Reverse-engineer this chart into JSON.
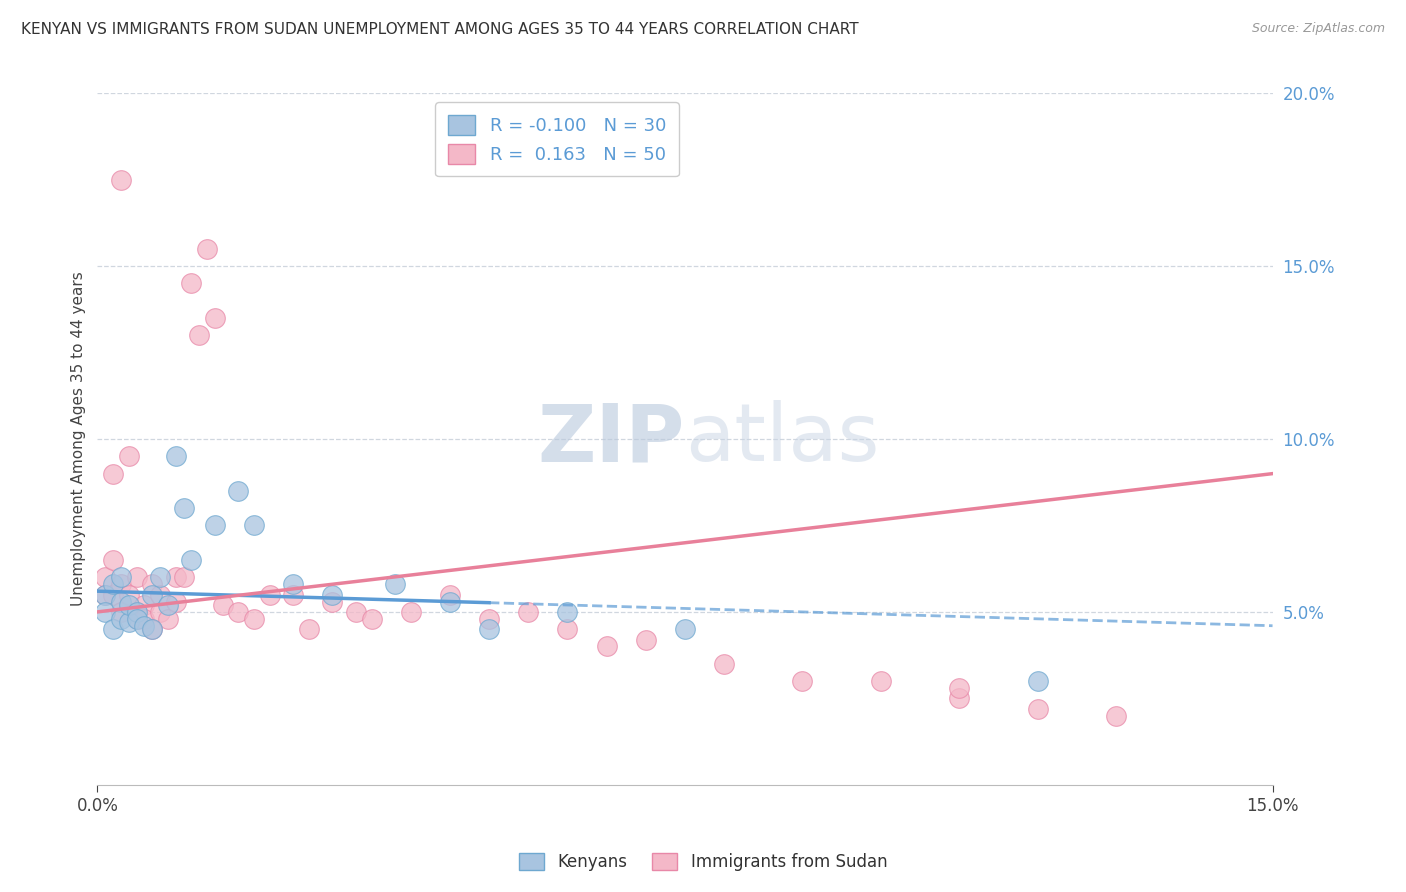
{
  "title": "KENYAN VS IMMIGRANTS FROM SUDAN UNEMPLOYMENT AMONG AGES 35 TO 44 YEARS CORRELATION CHART",
  "source": "Source: ZipAtlas.com",
  "ylabel": "Unemployment Among Ages 35 to 44 years",
  "legend_kenyans": "Kenyans",
  "legend_immigrants": "Immigrants from Sudan",
  "R_kenyans": -0.1,
  "N_kenyans": 30,
  "R_immigrants": 0.163,
  "N_immigrants": 50,
  "xmin": 0.0,
  "xmax": 0.15,
  "ymin": 0.0,
  "ymax": 0.2,
  "color_kenyans_fill": "#a8c4e0",
  "color_kenyans_edge": "#6ea8d0",
  "color_immigrants_fill": "#f4b8c8",
  "color_immigrants_edge": "#e888a8",
  "color_trend_kenyans": "#5b9bd5",
  "color_trend_immigrants": "#e8809a",
  "watermark_color": "#ccd8ec",
  "kenyans_x": [
    0.001,
    0.001,
    0.002,
    0.002,
    0.003,
    0.003,
    0.003,
    0.004,
    0.004,
    0.005,
    0.005,
    0.006,
    0.007,
    0.007,
    0.008,
    0.009,
    0.01,
    0.011,
    0.012,
    0.015,
    0.018,
    0.02,
    0.025,
    0.03,
    0.038,
    0.045,
    0.05,
    0.06,
    0.075,
    0.12
  ],
  "kenyans_y": [
    0.055,
    0.05,
    0.058,
    0.045,
    0.053,
    0.048,
    0.06,
    0.047,
    0.052,
    0.05,
    0.048,
    0.046,
    0.055,
    0.045,
    0.06,
    0.052,
    0.095,
    0.08,
    0.065,
    0.075,
    0.085,
    0.075,
    0.058,
    0.055,
    0.058,
    0.053,
    0.045,
    0.05,
    0.045,
    0.03
  ],
  "immigrants_x": [
    0.001,
    0.001,
    0.002,
    0.002,
    0.002,
    0.003,
    0.003,
    0.003,
    0.004,
    0.004,
    0.005,
    0.005,
    0.005,
    0.006,
    0.006,
    0.007,
    0.007,
    0.008,
    0.008,
    0.009,
    0.01,
    0.01,
    0.011,
    0.012,
    0.013,
    0.014,
    0.015,
    0.016,
    0.018,
    0.02,
    0.022,
    0.025,
    0.027,
    0.03,
    0.033,
    0.035,
    0.04,
    0.045,
    0.05,
    0.055,
    0.06,
    0.065,
    0.07,
    0.08,
    0.09,
    0.1,
    0.11,
    0.12,
    0.13,
    0.11
  ],
  "immigrants_y": [
    0.06,
    0.055,
    0.065,
    0.055,
    0.09,
    0.058,
    0.05,
    0.175,
    0.055,
    0.095,
    0.06,
    0.048,
    0.05,
    0.052,
    0.048,
    0.058,
    0.045,
    0.05,
    0.055,
    0.048,
    0.06,
    0.053,
    0.06,
    0.145,
    0.13,
    0.155,
    0.135,
    0.052,
    0.05,
    0.048,
    0.055,
    0.055,
    0.045,
    0.053,
    0.05,
    0.048,
    0.05,
    0.055,
    0.048,
    0.05,
    0.045,
    0.04,
    0.042,
    0.035,
    0.03,
    0.03,
    0.025,
    0.022,
    0.02,
    0.028
  ]
}
